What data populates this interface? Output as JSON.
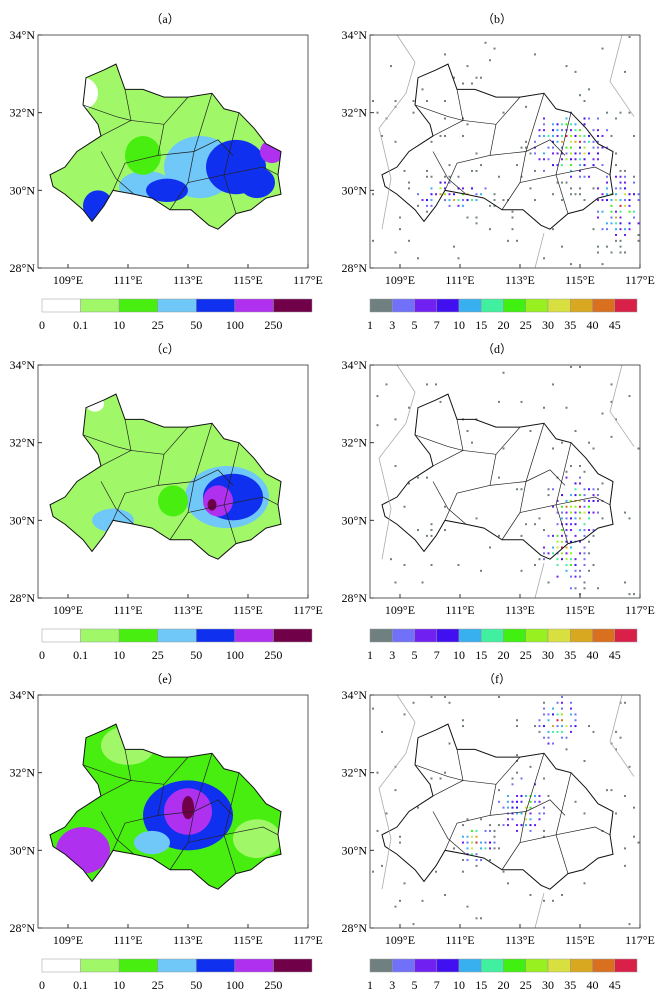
{
  "lon_labels": [
    "109°E",
    "111°E",
    "113°E",
    "115°E",
    "117°E"
  ],
  "lat_labels": [
    "34°N",
    "32°N",
    "30°N",
    "28°N"
  ],
  "left_colorbar": {
    "labels": [
      "0",
      "0.1",
      "10",
      "25",
      "50",
      "100",
      "250"
    ],
    "colors": [
      "#ffffff",
      "#a0f868",
      "#48ee10",
      "#70c8f8",
      "#1030f0",
      "#b030f0",
      "#700048"
    ]
  },
  "right_colorbar": {
    "labels": [
      "1",
      "3",
      "5",
      "7",
      "10",
      "15",
      "20",
      "25",
      "30",
      "35",
      "40",
      "45"
    ],
    "colors": [
      "#708080",
      "#7070f8",
      "#7020f0",
      "#4010f0",
      "#38b0f0",
      "#40f0a0",
      "#40f010",
      "#98f020",
      "#d8e040",
      "#d8a820",
      "#d87020",
      "#d82048"
    ]
  },
  "panels": [
    {
      "label": "（a）",
      "type": "precip",
      "base": 1,
      "areas": [
        [
          113.4,
          30.6,
          1.2,
          0.8,
          3
        ],
        [
          114.6,
          30.6,
          1.0,
          0.7,
          4
        ],
        [
          115.3,
          30.2,
          0.6,
          0.4,
          4
        ],
        [
          115.8,
          31.0,
          0.4,
          0.3,
          5
        ],
        [
          111.6,
          30.1,
          0.9,
          0.4,
          3
        ],
        [
          112.3,
          30.0,
          0.7,
          0.3,
          4
        ],
        [
          110.0,
          29.6,
          0.5,
          0.4,
          4
        ],
        [
          111.5,
          30.9,
          0.6,
          0.5,
          2
        ],
        [
          109.5,
          32.5,
          0.5,
          0.4,
          0
        ]
      ]
    },
    {
      "label": "（b）",
      "type": "dots",
      "hot": [
        [
          114.7,
          31.2,
          1.2,
          0.9
        ],
        [
          116.3,
          29.6,
          0.8,
          0.8
        ],
        [
          110.8,
          29.9,
          1.2,
          0.4
        ]
      ]
    },
    {
      "label": "（c）",
      "type": "precip",
      "base": 1,
      "areas": [
        [
          114.3,
          30.6,
          1.4,
          0.8,
          3
        ],
        [
          114.5,
          30.6,
          1.0,
          0.6,
          4
        ],
        [
          114.0,
          30.5,
          0.5,
          0.4,
          5
        ],
        [
          113.8,
          30.4,
          0.15,
          0.15,
          6
        ],
        [
          110.5,
          30.0,
          0.7,
          0.3,
          3
        ],
        [
          112.5,
          30.5,
          0.5,
          0.4,
          2
        ],
        [
          109.9,
          33.0,
          0.3,
          0.2,
          0
        ]
      ]
    },
    {
      "label": "（d）",
      "type": "dots",
      "hot": [
        [
          114.8,
          30.3,
          0.8,
          0.8
        ],
        [
          114.5,
          29.2,
          0.7,
          0.9
        ]
      ]
    },
    {
      "label": "（e）",
      "type": "precip",
      "base": 2,
      "areas": [
        [
          113.0,
          30.9,
          1.5,
          0.9,
          4
        ],
        [
          113.0,
          31.0,
          0.8,
          0.6,
          5
        ],
        [
          113.0,
          31.1,
          0.2,
          0.3,
          6
        ],
        [
          109.5,
          30.0,
          0.9,
          0.6,
          5
        ],
        [
          115.3,
          30.3,
          0.8,
          0.5,
          1
        ],
        [
          111.0,
          32.7,
          0.9,
          0.5,
          1
        ],
        [
          111.8,
          30.2,
          0.6,
          0.3,
          3
        ]
      ]
    },
    {
      "label": "（f）",
      "type": "dots",
      "hot": [
        [
          113.1,
          31.1,
          0.8,
          0.7
        ],
        [
          114.3,
          33.3,
          0.6,
          0.6
        ],
        [
          111.5,
          30.2,
          0.6,
          0.5
        ]
      ]
    }
  ]
}
